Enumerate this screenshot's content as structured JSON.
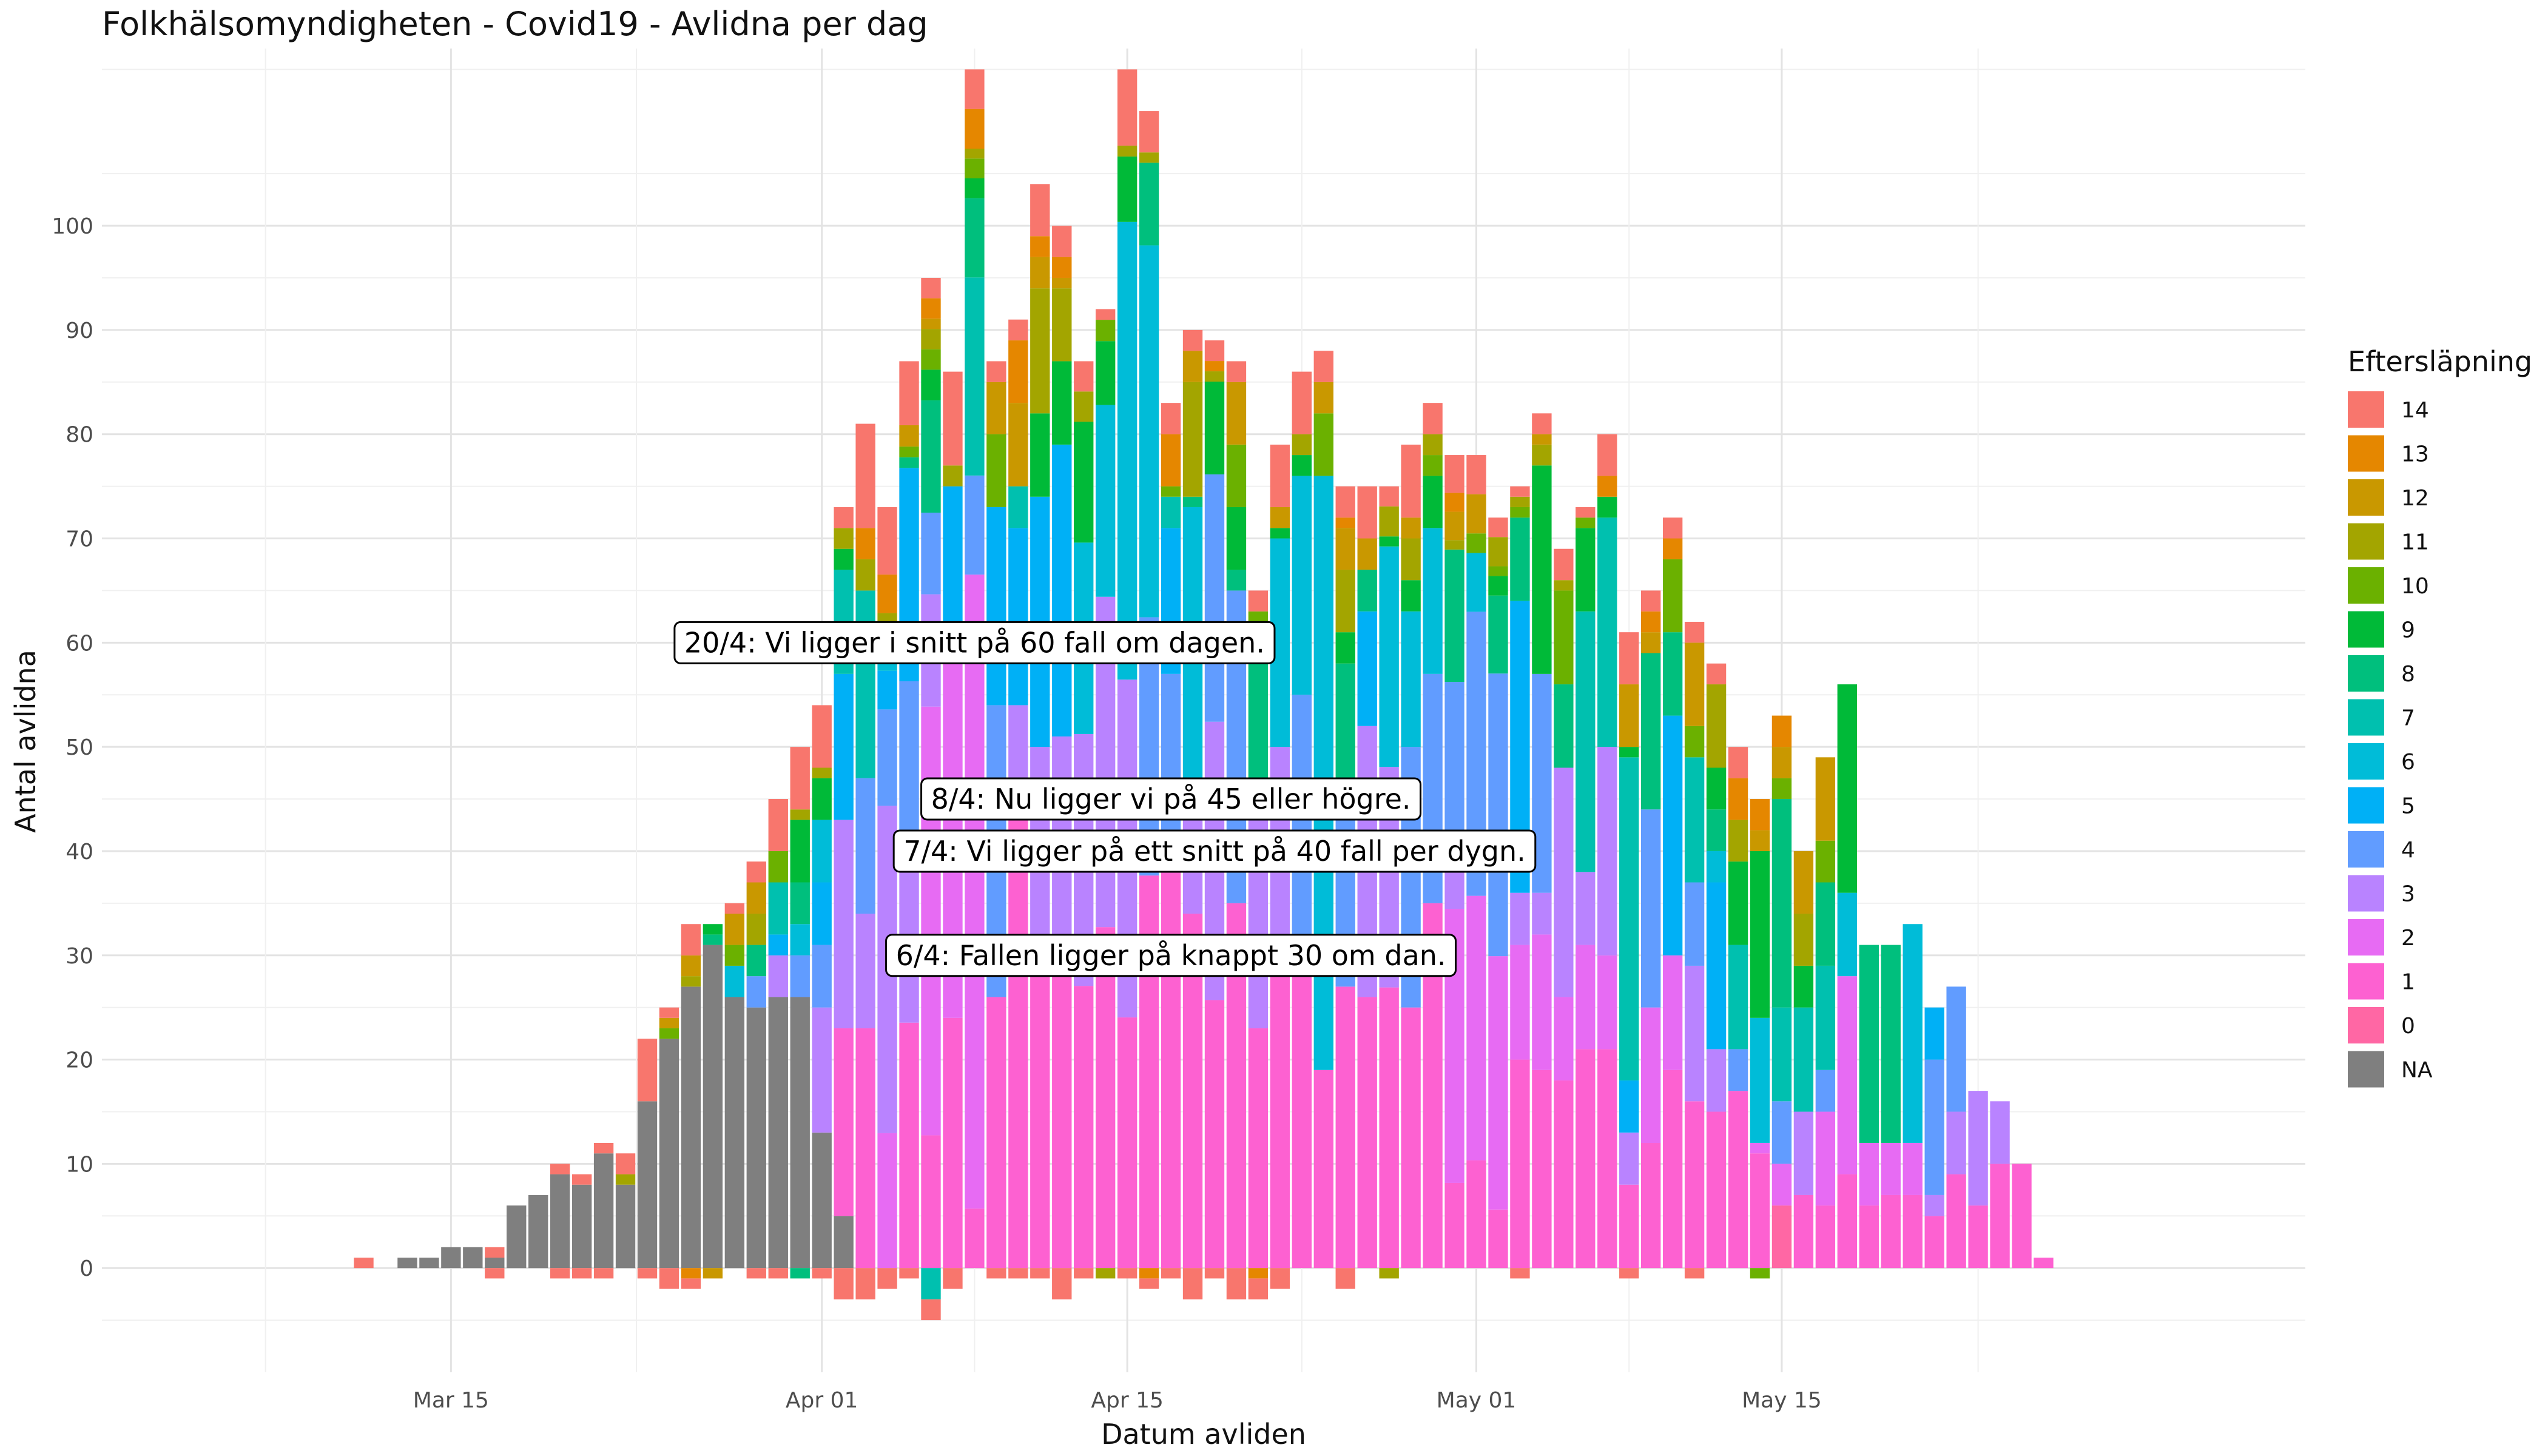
{
  "chart_data": {
    "type": "bar",
    "title": "Folkhälsomyndigheten - Covid19 - Avlidna per dag",
    "xlabel": "Datum avliden",
    "ylabel": "Antal avlidna",
    "stacked": true,
    "x_start": "2020-03-01",
    "xlim": [
      "2020-02-28",
      "2020-06-08"
    ],
    "ylim": [
      -10,
      117
    ],
    "x_ticks": [
      {
        "label": "Mar 15",
        "date": "2020-03-15"
      },
      {
        "label": "Apr 01",
        "date": "2020-04-01"
      },
      {
        "label": "Apr 15",
        "date": "2020-04-15"
      },
      {
        "label": "May 01",
        "date": "2020-05-01"
      },
      {
        "label": "May 15",
        "date": "2020-05-15"
      }
    ],
    "y_ticks": [
      0,
      10,
      20,
      30,
      40,
      50,
      60,
      70,
      80,
      90,
      100
    ],
    "grid": true,
    "legend": {
      "title": "Eftersläpning",
      "position": "right",
      "entries": [
        {
          "label": "14",
          "color": "#F8766D"
        },
        {
          "label": "13",
          "color": "#E58700"
        },
        {
          "label": "12",
          "color": "#C99800"
        },
        {
          "label": "11",
          "color": "#A3A500"
        },
        {
          "label": "10",
          "color": "#6BB100"
        },
        {
          "label": "9",
          "color": "#00BA38"
        },
        {
          "label": "8",
          "color": "#00BF7D"
        },
        {
          "label": "7",
          "color": "#00C0AF"
        },
        {
          "label": "6",
          "color": "#00BCD8"
        },
        {
          "label": "5",
          "color": "#00B0F6"
        },
        {
          "label": "4",
          "color": "#619CFF"
        },
        {
          "label": "3",
          "color": "#B983FF"
        },
        {
          "label": "2",
          "color": "#E76BF3"
        },
        {
          "label": "1",
          "color": "#FD61D1"
        },
        {
          "label": "0",
          "color": "#FF67A4"
        },
        {
          "label": "NA",
          "color": "#7F7F7F"
        }
      ]
    },
    "annotations": [
      {
        "text": "20/4: Vi ligger i snitt på 60 fall om dagen.",
        "date": "2020-04-08",
        "y": 60
      },
      {
        "text": "8/4: Nu ligger vi på 45 eller högre.",
        "date": "2020-04-17",
        "y": 45
      },
      {
        "text": "7/4: Vi ligger på ett snitt på 40 fall per dygn.",
        "date": "2020-04-19",
        "y": 40
      },
      {
        "text": "6/4: Fallen ligger på knappt 30 om dan.",
        "date": "2020-04-17",
        "y": 30
      }
    ],
    "series_order": [
      "NA",
      "0",
      "1",
      "2",
      "3",
      "4",
      "5",
      "6",
      "7",
      "8",
      "9",
      "10",
      "11",
      "12",
      "13",
      "14"
    ],
    "days": [
      {
        "date": "2020-03-11",
        "total": 1,
        "parts": {
          "14": 1
        }
      },
      {
        "date": "2020-03-13",
        "total": 1,
        "parts": {
          "NA": 1
        }
      },
      {
        "date": "2020-03-14",
        "total": 1,
        "parts": {
          "NA": 1
        }
      },
      {
        "date": "2020-03-15",
        "total": 2,
        "parts": {
          "NA": 2
        }
      },
      {
        "date": "2020-03-16",
        "total": 2,
        "parts": {
          "NA": 2
        }
      },
      {
        "date": "2020-03-17",
        "total": 2,
        "parts": {
          "NA": 1,
          "14": 1
        },
        "neg": {
          "14": 1
        }
      },
      {
        "date": "2020-03-18",
        "total": 6,
        "parts": {
          "NA": 6
        }
      },
      {
        "date": "2020-03-19",
        "total": 7,
        "parts": {
          "NA": 7
        }
      },
      {
        "date": "2020-03-20",
        "total": 10,
        "parts": {
          "NA": 9,
          "14": 1
        },
        "neg": {
          "14": 1
        }
      },
      {
        "date": "2020-03-21",
        "total": 9,
        "parts": {
          "NA": 8,
          "14": 1
        },
        "neg": {
          "14": 1
        }
      },
      {
        "date": "2020-03-22",
        "total": 12,
        "parts": {
          "NA": 11,
          "14": 1
        },
        "neg": {
          "14": 1
        }
      },
      {
        "date": "2020-03-23",
        "total": 11,
        "parts": {
          "NA": 8,
          "11": 1,
          "14": 2
        }
      },
      {
        "date": "2020-03-24",
        "total": 22,
        "parts": {
          "NA": 16,
          "14": 6
        },
        "neg": {
          "14": 1
        }
      },
      {
        "date": "2020-03-25",
        "total": 25,
        "parts": {
          "NA": 22,
          "10": 1,
          "12": 1,
          "14": 1
        },
        "neg": {
          "14": 2
        }
      },
      {
        "date": "2020-03-26",
        "total": 33,
        "parts": {
          "NA": 27,
          "11": 1,
          "12": 2,
          "14": 3
        },
        "neg": {
          "13": 1,
          "14": 1
        }
      },
      {
        "date": "2020-03-27",
        "total": 33,
        "parts": {
          "NA": 31,
          "8": 1,
          "9": 1
        },
        "neg": {
          "12": 1
        }
      },
      {
        "date": "2020-03-28",
        "total": 35,
        "parts": {
          "NA": 26,
          "6": 3,
          "10": 2,
          "12": 3,
          "14": 1
        }
      },
      {
        "date": "2020-03-29",
        "total": 39,
        "parts": {
          "NA": 25,
          "4": 3,
          "8": 3,
          "11": 3,
          "12": 3,
          "14": 2
        },
        "neg": {
          "14": 1
        }
      },
      {
        "date": "2020-03-30",
        "total": 45,
        "parts": {
          "NA": 26,
          "3": 4,
          "5": 2,
          "7": 5,
          "10": 3,
          "14": 5
        },
        "neg": {
          "14": 1
        }
      },
      {
        "date": "2020-03-31",
        "total": 50,
        "parts": {
          "NA": 26,
          "4": 4,
          "6": 3,
          "8": 4,
          "9": 6,
          "11": 1,
          "14": 6
        },
        "neg": {
          "8": 1
        }
      },
      {
        "date": "2020-04-01",
        "total": 54,
        "parts": {
          "NA": 13,
          "3": 12,
          "4": 6,
          "5": 6,
          "6": 6,
          "9": 4,
          "11": 1,
          "14": 6
        },
        "neg": {
          "14": 1
        }
      },
      {
        "date": "2020-04-02",
        "total": 73,
        "parts": {
          "NA": 5,
          "1": 18,
          "3": 20,
          "5": 14,
          "7": 10,
          "9": 2,
          "11": 2,
          "14": 2
        },
        "neg": {
          "14": 3
        }
      },
      {
        "date": "2020-04-03",
        "total": 81,
        "parts": {
          "1": 23,
          "3": 11,
          "4": 13,
          "7": 18,
          "11": 3,
          "13": 3,
          "14": 10
        },
        "neg": {
          "14": 3
        }
      },
      {
        "date": "2020-04-04",
        "total": 73,
        "parts": {
          "2": 14,
          "3": 34,
          "4": 10,
          "5": 4,
          "6": 4,
          "11": 2,
          "13": 4,
          "14": 7
        },
        "neg": {
          "14": 2
        }
      },
      {
        "date": "2020-04-05",
        "total": 87,
        "parts": {
          "1": 23,
          "3": 17,
          "4": 15,
          "5": 20,
          "8": 1,
          "10": 1,
          "12": 2,
          "14": 6
        },
        "neg": {
          "14": 1
        }
      },
      {
        "date": "2020-04-06",
        "total": 95,
        "parts": {
          "1": 13,
          "2": 42,
          "3": 11,
          "4": 8,
          "8": 11,
          "9": 3,
          "10": 2,
          "11": 2,
          "12": 1,
          "13": 2,
          "14": 2
        },
        "neg": {
          "7": 3,
          "14": 2
        }
      },
      {
        "date": "2020-04-07",
        "total": 86,
        "parts": {
          "1": 24,
          "2": 38,
          "5": 13,
          "11": 2,
          "14": 9
        },
        "neg": {
          "14": 2
        }
      },
      {
        "date": "2020-04-08",
        "total": 115,
        "parts": {
          "1": 6,
          "2": 64,
          "4": 10,
          "7": 20,
          "8": 8,
          "9": 2,
          "10": 2,
          "11": 1,
          "13": 4,
          "14": 4
        }
      },
      {
        "date": "2020-04-09",
        "total": 87,
        "parts": {
          "1": 26,
          "4": 28,
          "5": 19,
          "10": 7,
          "12": 5,
          "14": 2
        },
        "neg": {
          "14": 1
        }
      },
      {
        "date": "2020-04-10",
        "total": 91,
        "parts": {
          "1": 45,
          "3": 9,
          "5": 17,
          "7": 4,
          "12": 8,
          "13": 6,
          "14": 2
        },
        "neg": {
          "14": 1
        }
      },
      {
        "date": "2020-04-11",
        "total": 104,
        "parts": {
          "1": 32,
          "3": 18,
          "5": 24,
          "9": 8,
          "11": 12,
          "12": 3,
          "13": 2,
          "14": 5
        },
        "neg": {
          "14": 1
        }
      },
      {
        "date": "2020-04-12",
        "total": 100,
        "parts": {
          "1": 32,
          "3": 19,
          "5": 28,
          "9": 8,
          "11": 7,
          "12": 1,
          "13": 2,
          "14": 3
        },
        "neg": {
          "14": 3
        }
      },
      {
        "date": "2020-04-13",
        "total": 87,
        "parts": {
          "1": 28,
          "3": 25,
          "6": 19,
          "9": 12,
          "11": 3,
          "14": 3
        },
        "neg": {
          "14": 1
        }
      },
      {
        "date": "2020-04-14",
        "total": 92,
        "parts": {
          "1": 32,
          "3": 31,
          "6": 18,
          "9": 6,
          "10": 2,
          "14": 1
        },
        "neg": {
          "11": 1
        }
      },
      {
        "date": "2020-04-15",
        "total": 115,
        "parts": {
          "1": 23,
          "3": 31,
          "6": 42,
          "9": 6,
          "11": 1,
          "14": 7
        },
        "neg": {
          "14": 1
        }
      },
      {
        "date": "2020-04-16",
        "total": 111,
        "parts": {
          "1": 38,
          "4": 25,
          "6": 36,
          "8": 8,
          "11": 1,
          "14": 4
        },
        "neg": {
          "13": 1,
          "14": 1
        }
      },
      {
        "date": "2020-04-17",
        "total": 83,
        "parts": {
          "1": 41,
          "4": 16,
          "5": 14,
          "7": 3,
          "10": 1,
          "13": 5,
          "14": 3
        },
        "neg": {
          "14": 1
        }
      },
      {
        "date": "2020-04-18",
        "total": 90,
        "parts": {
          "1": 34,
          "3": 12,
          "6": 27,
          "8": 1,
          "11": 11,
          "12": 3,
          "14": 2
        },
        "neg": {
          "14": 3
        }
      },
      {
        "date": "2020-04-19",
        "total": 89,
        "parts": {
          "1": 26,
          "3": 27,
          "4": 24,
          "9": 9,
          "11": 1,
          "13": 1,
          "14": 2
        },
        "neg": {
          "14": 1
        }
      },
      {
        "date": "2020-04-20",
        "total": 87,
        "parts": {
          "1": 35,
          "4": 30,
          "8": 2,
          "9": 6,
          "10": 6,
          "12": 6,
          "14": 2
        },
        "neg": {
          "14": 3
        }
      },
      {
        "date": "2020-04-21",
        "total": 65,
        "parts": {
          "1": 23,
          "3": 22,
          "8": 15,
          "10": 3,
          "14": 2
        },
        "neg": {
          "13": 1,
          "14": 2
        }
      },
      {
        "date": "2020-04-22",
        "total": 79,
        "parts": {
          "1": 28,
          "3": 22,
          "6": 20,
          "9": 1,
          "12": 2,
          "14": 6
        },
        "neg": {
          "14": 2
        }
      },
      {
        "date": "2020-04-23",
        "total": 86,
        "parts": {
          "1": 31,
          "4": 24,
          "6": 21,
          "9": 2,
          "11": 2,
          "14": 6
        }
      },
      {
        "date": "2020-04-24",
        "total": 88,
        "parts": {
          "1": 19,
          "6": 57,
          "10": 6,
          "12": 3,
          "14": 3
        }
      },
      {
        "date": "2020-04-25",
        "total": 75,
        "parts": {
          "1": 27,
          "4": 16,
          "8": 15,
          "9": 3,
          "11": 6,
          "12": 4,
          "13": 1,
          "14": 3
        },
        "neg": {
          "14": 2
        }
      },
      {
        "date": "2020-04-26",
        "total": 75,
        "parts": {
          "1": 26,
          "3": 26,
          "5": 11,
          "8": 4,
          "12": 3,
          "14": 5
        }
      },
      {
        "date": "2020-04-27",
        "total": 75,
        "parts": {
          "1": 28,
          "3": 22,
          "6": 22,
          "9": 1,
          "11": 3,
          "14": 2
        },
        "neg": {
          "11": 1
        }
      },
      {
        "date": "2020-04-28",
        "total": 79,
        "parts": {
          "1": 25,
          "4": 25,
          "6": 13,
          "9": 3,
          "11": 4,
          "12": 2,
          "14": 7
        }
      },
      {
        "date": "2020-04-29",
        "total": 83,
        "parts": {
          "1": 35,
          "4": 22,
          "6": 14,
          "9": 5,
          "10": 2,
          "11": 2,
          "14": 3
        }
      },
      {
        "date": "2020-04-30",
        "total": 78,
        "parts": {
          "1": 9,
          "2": 29,
          "3": 6,
          "4": 18,
          "8": 14,
          "11": 1,
          "12": 3,
          "13": 2,
          "14": 4
        }
      },
      {
        "date": "2020-05-01",
        "total": 78,
        "parts": {
          "1": 11,
          "2": 27,
          "4": 29,
          "6": 6,
          "10": 2,
          "12": 4,
          "14": 4
        }
      },
      {
        "date": "2020-05-02",
        "total": 72,
        "parts": {
          "1": 6,
          "2": 26,
          "4": 29,
          "8": 8,
          "9": 2,
          "10": 1,
          "11": 3,
          "14": 2
        }
      },
      {
        "date": "2020-05-03",
        "total": 75,
        "parts": {
          "1": 20,
          "2": 11,
          "3": 5,
          "5": 28,
          "8": 8,
          "10": 1,
          "11": 1,
          "14": 1
        },
        "neg": {
          "14": 1
        }
      },
      {
        "date": "2020-05-04",
        "total": 82,
        "parts": {
          "1": 19,
          "2": 13,
          "3": 4,
          "4": 21,
          "9": 20,
          "11": 2,
          "12": 1,
          "14": 2
        }
      },
      {
        "date": "2020-05-05",
        "total": 69,
        "parts": {
          "1": 18,
          "2": 8,
          "3": 22,
          "8": 8,
          "10": 9,
          "11": 1,
          "14": 3
        }
      },
      {
        "date": "2020-05-06",
        "total": 73,
        "parts": {
          "1": 21,
          "2": 10,
          "3": 7,
          "7": 25,
          "9": 8,
          "10": 1,
          "14": 1
        }
      },
      {
        "date": "2020-05-07",
        "total": 80,
        "parts": {
          "1": 21,
          "2": 9,
          "3": 20,
          "7": 22,
          "9": 2,
          "13": 2,
          "14": 4
        }
      },
      {
        "date": "2020-05-08",
        "total": 61,
        "parts": {
          "1": 8,
          "3": 5,
          "5": 5,
          "7": 31,
          "9": 1,
          "12": 6,
          "14": 5
        },
        "neg": {
          "14": 1
        }
      },
      {
        "date": "2020-05-09",
        "total": 65,
        "parts": {
          "1": 12,
          "2": 13,
          "4": 19,
          "8": 15,
          "12": 2,
          "13": 2,
          "14": 2
        }
      },
      {
        "date": "2020-05-10",
        "total": 72,
        "parts": {
          "1": 19,
          "2": 11,
          "5": 23,
          "8": 8,
          "10": 7,
          "13": 2,
          "14": 2
        }
      },
      {
        "date": "2020-05-11",
        "total": 62,
        "parts": {
          "1": 16,
          "3": 13,
          "4": 8,
          "7": 12,
          "10": 3,
          "12": 8,
          "14": 2
        },
        "neg": {
          "14": 1
        }
      },
      {
        "date": "2020-05-12",
        "total": 58,
        "parts": {
          "1": 15,
          "3": 6,
          "5": 16,
          "6": 3,
          "8": 4,
          "9": 4,
          "11": 8,
          "14": 2
        }
      },
      {
        "date": "2020-05-13",
        "total": 50,
        "parts": {
          "1": 17,
          "4": 4,
          "7": 10,
          "9": 8,
          "11": 4,
          "13": 4,
          "14": 3
        }
      },
      {
        "date": "2020-05-14",
        "total": 45,
        "parts": {
          "1": 11,
          "2": 1,
          "6": 12,
          "9": 16,
          "12": 2,
          "13": 3
        },
        "neg": {
          "10": 1
        }
      },
      {
        "date": "2020-05-15",
        "total": 53,
        "parts": {
          "0": 6,
          "2": 4,
          "4": 6,
          "7": 9,
          "8": 20,
          "10": 2,
          "12": 3,
          "13": 3
        }
      },
      {
        "date": "2020-05-16",
        "total": 40,
        "parts": {
          "1": 7,
          "3": 8,
          "7": 10,
          "9": 4,
          "11": 5,
          "12": 6
        }
      },
      {
        "date": "2020-05-17",
        "total": 49,
        "parts": {
          "1": 6,
          "2": 9,
          "4": 4,
          "7": 10,
          "8": 8,
          "10": 4,
          "12": 8
        }
      },
      {
        "date": "2020-05-18",
        "total": 56,
        "parts": {
          "1": 9,
          "2": 19,
          "6": 8,
          "9": 20
        }
      },
      {
        "date": "2020-05-19",
        "total": 31,
        "parts": {
          "1": 6,
          "2": 6,
          "4": 0,
          "8": 19
        }
      },
      {
        "date": "2020-05-20",
        "total": 31,
        "parts": {
          "1": 7,
          "2": 5,
          "8": 19
        }
      },
      {
        "date": "2020-05-21",
        "total": 33,
        "parts": {
          "1": 7,
          "2": 5,
          "6": 21
        }
      },
      {
        "date": "2020-05-22",
        "total": 25,
        "parts": {
          "1": 5,
          "3": 2,
          "4": 13,
          "5": 5
        }
      },
      {
        "date": "2020-05-23",
        "total": 27,
        "parts": {
          "1": 9,
          "3": 6,
          "4": 12
        }
      },
      {
        "date": "2020-05-24",
        "total": 17,
        "parts": {
          "1": 6,
          "3": 11
        }
      },
      {
        "date": "2020-05-25",
        "total": 16,
        "parts": {
          "1": 10,
          "3": 6
        }
      },
      {
        "date": "2020-05-26",
        "total": 10,
        "parts": {
          "1": 10
        }
      },
      {
        "date": "2020-05-27",
        "total": 1,
        "parts": {
          "1": 1
        }
      }
    ]
  }
}
